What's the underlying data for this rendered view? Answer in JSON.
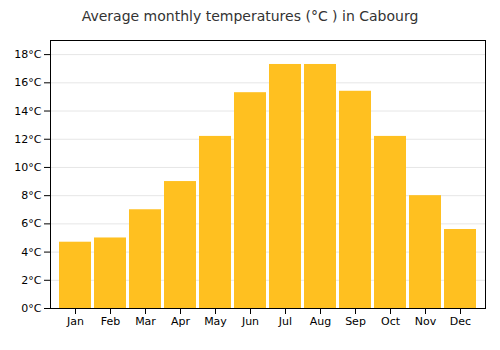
{
  "chart_data": {
    "type": "bar",
    "title": "Average monthly temperatures (°C ) in Cabourg",
    "categories": [
      "Jan",
      "Feb",
      "Mar",
      "Apr",
      "May",
      "Jun",
      "Jul",
      "Aug",
      "Sep",
      "Oct",
      "Nov",
      "Dec"
    ],
    "values": [
      4.7,
      5.0,
      7.0,
      9.0,
      12.2,
      15.3,
      17.3,
      17.3,
      15.4,
      12.2,
      8.0,
      5.6
    ],
    "color": "#FFC020",
    "ylim": [
      0,
      19
    ],
    "yticks": [
      {
        "value": 0,
        "label": "0°C"
      },
      {
        "value": 2,
        "label": "2°C"
      },
      {
        "value": 4,
        "label": "4°C"
      },
      {
        "value": 6,
        "label": "6°C"
      },
      {
        "value": 8,
        "label": "8°C"
      },
      {
        "value": 10,
        "label": "10°C"
      },
      {
        "value": 12,
        "label": "12°C"
      },
      {
        "value": 14,
        "label": "14°C"
      },
      {
        "value": 16,
        "label": "16°C"
      },
      {
        "value": 18,
        "label": "18°C"
      }
    ],
    "grid": true
  }
}
